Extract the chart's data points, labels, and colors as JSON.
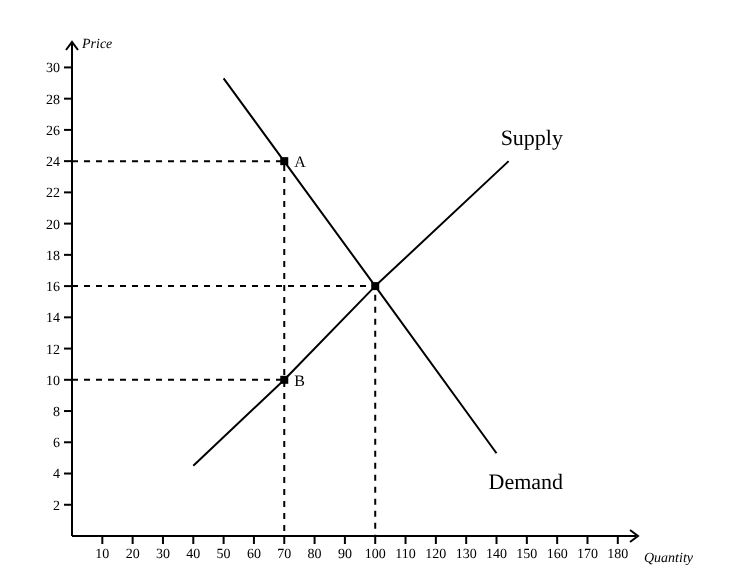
{
  "chart_data": {
    "type": "line",
    "xlabel": "Quantity",
    "ylabel": "Price",
    "xlim": [
      0,
      186
    ],
    "ylim": [
      0,
      31.5
    ],
    "xticks": [
      10,
      20,
      30,
      40,
      50,
      60,
      70,
      80,
      90,
      100,
      110,
      120,
      130,
      140,
      150,
      160,
      170,
      180
    ],
    "yticks": [
      2,
      4,
      6,
      8,
      10,
      12,
      14,
      16,
      18,
      20,
      22,
      24,
      26,
      28,
      30
    ],
    "grid": false,
    "marker": "none",
    "line_style": "solid",
    "series": [
      {
        "name": "Demand",
        "color": "#000000",
        "x": [
          50,
          100,
          140
        ],
        "values": [
          29.3,
          16,
          5.3
        ]
      },
      {
        "name": "Supply",
        "color": "#000000",
        "x": [
          40,
          70,
          100,
          144
        ],
        "values": [
          4.5,
          10,
          16,
          24
        ]
      },
      {
        "line_style": "dashed",
        "color": "#000000",
        "x": [
          0,
          70,
          70
        ],
        "values": [
          24,
          24,
          0
        ]
      },
      {
        "line_style": "dashed",
        "color": "#000000",
        "x": [
          0,
          100,
          100
        ],
        "values": [
          16,
          16,
          0
        ]
      },
      {
        "line_style": "dashed",
        "color": "#000000",
        "x": [
          0,
          70
        ],
        "values": [
          10,
          10
        ]
      },
      {
        "type": "scatter",
        "marker": "square",
        "color": "#000000",
        "x": [
          70,
          70,
          100
        ],
        "values": [
          24,
          10,
          16
        ]
      }
    ],
    "annotations": [
      {
        "text": "A",
        "x": 70,
        "y": 24
      },
      {
        "text": "B",
        "x": 70,
        "y": 10
      }
    ]
  }
}
